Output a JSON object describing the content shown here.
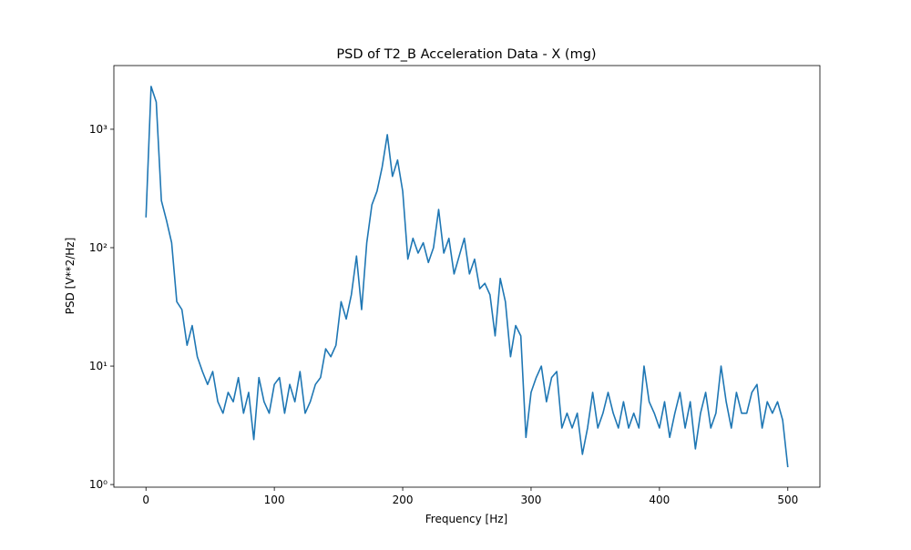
{
  "chart_data": {
    "type": "line",
    "title": "PSD of T2_B Acceleration Data - X (mg)",
    "x_label": "Frequency [Hz]",
    "y_label": "PSD [V**2/Hz]",
    "color": "#1f77b4",
    "log_y": true,
    "xlim": [
      -25,
      525
    ],
    "ylim": [
      0.95,
      3450
    ],
    "xticks": [
      0,
      100,
      200,
      300,
      400,
      500
    ],
    "yticks": [
      {
        "value": 1,
        "label": "10⁰"
      },
      {
        "value": 10,
        "label": "10¹"
      },
      {
        "value": 100,
        "label": "10²"
      },
      {
        "value": 1000,
        "label": "10³"
      }
    ],
    "x": [
      0,
      4,
      8,
      12,
      16,
      20,
      24,
      28,
      32,
      36,
      40,
      44,
      48,
      52,
      56,
      60,
      64,
      68,
      72,
      76,
      80,
      84,
      88,
      92,
      96,
      100,
      104,
      108,
      112,
      116,
      120,
      124,
      128,
      132,
      136,
      140,
      144,
      148,
      152,
      156,
      160,
      164,
      168,
      172,
      176,
      180,
      184,
      188,
      192,
      196,
      200,
      204,
      208,
      212,
      216,
      220,
      224,
      228,
      232,
      236,
      240,
      244,
      248,
      252,
      256,
      260,
      264,
      268,
      272,
      276,
      280,
      284,
      288,
      292,
      296,
      300,
      304,
      308,
      312,
      316,
      320,
      324,
      328,
      332,
      336,
      340,
      344,
      348,
      352,
      356,
      360,
      364,
      368,
      372,
      376,
      380,
      384,
      388,
      392,
      396,
      400,
      404,
      408,
      412,
      416,
      420,
      424,
      428,
      432,
      436,
      440,
      444,
      448,
      452,
      456,
      460,
      464,
      468,
      472,
      476,
      480,
      484,
      488,
      492,
      496,
      500
    ],
    "values": [
      180,
      2300,
      1700,
      250,
      170,
      110,
      35,
      30,
      15,
      22,
      12,
      9,
      7,
      9,
      5,
      4,
      6,
      5,
      8,
      4,
      6,
      2.4,
      8,
      5,
      4,
      7,
      8,
      4,
      7,
      5,
      9,
      4,
      5,
      7,
      8,
      14,
      12,
      15,
      35,
      25,
      40,
      85,
      30,
      110,
      230,
      300,
      480,
      900,
      400,
      550,
      300,
      80,
      120,
      90,
      110,
      75,
      100,
      210,
      90,
      120,
      60,
      85,
      120,
      60,
      80,
      45,
      50,
      40,
      18,
      55,
      35,
      12,
      22,
      18,
      2.5,
      6,
      8,
      10,
      5,
      8,
      9,
      3,
      4,
      3,
      4,
      1.8,
      3,
      6,
      3,
      4,
      6,
      4,
      3,
      5,
      3,
      4,
      3,
      10,
      5,
      4,
      3,
      5,
      2.5,
      4,
      6,
      3,
      5,
      2,
      4,
      6,
      3,
      4,
      10,
      5,
      3,
      6,
      4,
      4,
      6,
      7,
      3,
      5,
      4,
      5,
      3.5,
      1.4
    ]
  }
}
